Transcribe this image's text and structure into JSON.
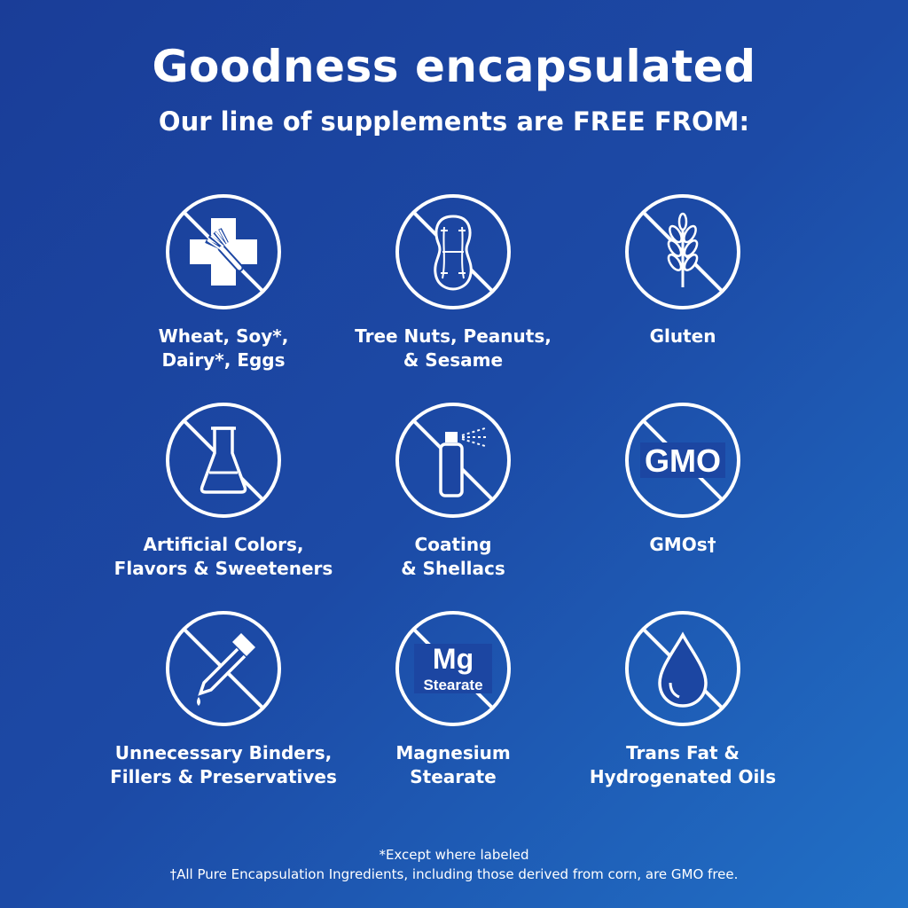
{
  "header": {
    "title": "Goodness encapsulated",
    "subtitle": "Our line of supplements are FREE FROM:"
  },
  "items": [
    {
      "icon": "allergen-cross-fork-icon",
      "lines": [
        "Wheat, Soy*,",
        "Dairy*, Eggs"
      ]
    },
    {
      "icon": "peanut-icon",
      "lines": [
        "Tree Nuts, Peanuts,",
        "& Sesame"
      ]
    },
    {
      "icon": "wheat-icon",
      "lines": [
        "Gluten",
        ""
      ]
    },
    {
      "icon": "flask-icon",
      "lines": [
        "Artificial Colors,",
        "Flavors & Sweeteners"
      ]
    },
    {
      "icon": "spray-can-icon",
      "lines": [
        "Coating",
        "& Shellacs"
      ]
    },
    {
      "icon": "gmo-icon",
      "icon_text": "GMO",
      "lines": [
        "GMOs†",
        ""
      ]
    },
    {
      "icon": "dropper-icon",
      "lines": [
        "Unnecessary Binders,",
        "Fillers & Preservatives"
      ]
    },
    {
      "icon": "mg-stearate-icon",
      "icon_text": "Mg",
      "icon_subtext": "Stearate",
      "lines": [
        "Magnesium",
        "Stearate"
      ]
    },
    {
      "icon": "oil-drop-icon",
      "lines": [
        "Trans Fat &",
        "Hydrogenated Oils"
      ]
    }
  ],
  "footnotes": [
    "*Except where labeled",
    "†All Pure Encapsulation Ingredients, including those derived from corn, are GMO free."
  ],
  "colors": {
    "background_start": "#1a3d98",
    "background_end": "#2170c6",
    "foreground": "#ffffff"
  }
}
